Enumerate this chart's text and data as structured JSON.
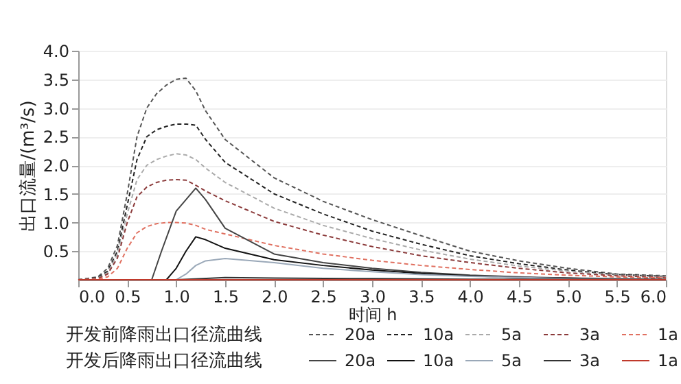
{
  "chart_data": {
    "type": "line",
    "xlabel": "时间 h",
    "ylabel": "出口流量/(m³/s)",
    "xlim": [
      0,
      6.0
    ],
    "ylim": [
      0,
      4.0
    ],
    "xticks": [
      {
        "value": 0,
        "label": "0.0"
      },
      0.5,
      {
        "value": 1,
        "label": "1.0"
      },
      1.5,
      {
        "value": 2,
        "label": "2.0"
      },
      2.5,
      {
        "value": 3,
        "label": "3.0"
      },
      3.5,
      {
        "value": 4,
        "label": "4.0"
      },
      4.5,
      {
        "value": 5,
        "label": "5.0"
      },
      5.5,
      {
        "value": 6,
        "label": "6.0"
      }
    ],
    "yticks": [
      0.5,
      {
        "value": 1,
        "label": "1.0"
      },
      1.5,
      {
        "value": 2,
        "label": "2.0"
      },
      2.5,
      {
        "value": 3,
        "label": "3.0"
      },
      3.5,
      {
        "value": 4,
        "label": "4.0"
      }
    ],
    "grid": "y",
    "legend": "bottom",
    "marker": "none",
    "annotations": [
      "开发前降雨出口径流曲线",
      "开发后降雨出口径流曲线"
    ],
    "series": [
      {
        "name": "20a",
        "color": "#555555",
        "line_style": "dashed",
        "x": [
          0,
          0.2,
          0.3,
          0.4,
          0.5,
          0.6,
          0.7,
          0.8,
          0.9,
          1.0,
          1.1,
          1.2,
          1.3,
          1.5,
          2.0,
          2.5,
          3.0,
          3.5,
          4.0,
          4.5,
          5.0,
          5.5,
          6.0
        ],
        "values": [
          0,
          0.05,
          0.2,
          0.6,
          1.5,
          2.5,
          3.0,
          3.25,
          3.4,
          3.5,
          3.52,
          3.3,
          2.95,
          2.45,
          1.78,
          1.37,
          1.05,
          0.77,
          0.5,
          0.33,
          0.2,
          0.1,
          0.07
        ]
      },
      {
        "name": "10a",
        "color": "#222222",
        "line_style": "dashed",
        "x": [
          0,
          0.2,
          0.3,
          0.4,
          0.5,
          0.6,
          0.7,
          0.8,
          0.9,
          1.0,
          1.1,
          1.2,
          1.3,
          1.5,
          2.0,
          2.5,
          3.0,
          3.5,
          4.0,
          4.5,
          5.0,
          5.5,
          6.0
        ],
        "values": [
          0,
          0.04,
          0.15,
          0.5,
          1.3,
          2.1,
          2.5,
          2.62,
          2.68,
          2.72,
          2.72,
          2.7,
          2.45,
          2.05,
          1.5,
          1.15,
          0.85,
          0.62,
          0.42,
          0.28,
          0.17,
          0.09,
          0.06
        ]
      },
      {
        "name": "5a",
        "color": "#aaaaaa",
        "line_style": "dashed",
        "x": [
          0,
          0.2,
          0.3,
          0.4,
          0.5,
          0.6,
          0.7,
          0.8,
          0.9,
          1.0,
          1.1,
          1.2,
          1.3,
          1.5,
          2.0,
          2.5,
          3.0,
          3.5,
          4.0,
          4.5,
          5.0,
          5.5,
          6.0
        ],
        "values": [
          0,
          0.03,
          0.12,
          0.45,
          1.15,
          1.75,
          2.0,
          2.1,
          2.16,
          2.2,
          2.18,
          2.1,
          1.95,
          1.7,
          1.25,
          0.95,
          0.72,
          0.52,
          0.36,
          0.24,
          0.15,
          0.08,
          0.05
        ]
      },
      {
        "name": "3a",
        "color": "#8b3a3a",
        "line_style": "dashed",
        "x": [
          0,
          0.2,
          0.3,
          0.4,
          0.5,
          0.6,
          0.7,
          0.8,
          0.9,
          1.0,
          1.1,
          1.2,
          1.3,
          1.5,
          2.0,
          2.5,
          3.0,
          3.5,
          4.0,
          4.5,
          5.0,
          5.5,
          6.0
        ],
        "values": [
          0,
          0.02,
          0.1,
          0.38,
          1.0,
          1.45,
          1.62,
          1.7,
          1.74,
          1.75,
          1.74,
          1.65,
          1.55,
          1.38,
          1.02,
          0.78,
          0.58,
          0.42,
          0.3,
          0.2,
          0.12,
          0.07,
          0.04
        ]
      },
      {
        "name": "1a",
        "color": "#e07060",
        "line_style": "dashed",
        "x": [
          0,
          0.2,
          0.3,
          0.4,
          0.5,
          0.6,
          0.7,
          0.8,
          0.9,
          1.0,
          1.1,
          1.2,
          1.3,
          1.5,
          2.0,
          2.5,
          3.0,
          3.5,
          4.0,
          4.5,
          5.0,
          5.5,
          6.0
        ],
        "values": [
          0,
          0.01,
          0.05,
          0.2,
          0.55,
          0.82,
          0.93,
          0.98,
          1.0,
          1.0,
          0.99,
          0.95,
          0.88,
          0.8,
          0.6,
          0.45,
          0.34,
          0.25,
          0.18,
          0.12,
          0.08,
          0.05,
          0.03
        ]
      },
      {
        "name": "20a",
        "color": "#444444",
        "line_style": "solid",
        "x": [
          0,
          0.75,
          0.85,
          1.0,
          1.1,
          1.2,
          1.3,
          1.5,
          2.0,
          2.5,
          3.0,
          3.5,
          4.0,
          4.5,
          5.0,
          5.5,
          6.0
        ],
        "values": [
          0,
          0,
          0.5,
          1.2,
          1.4,
          1.6,
          1.4,
          0.9,
          0.45,
          0.3,
          0.2,
          0.13,
          0.08,
          0.05,
          0.03,
          0.02,
          0.01
        ]
      },
      {
        "name": "10a",
        "color": "#111111",
        "line_style": "solid",
        "x": [
          0,
          0.9,
          1.0,
          1.1,
          1.2,
          1.3,
          1.5,
          2.0,
          2.5,
          3.0,
          3.5,
          4.0,
          4.5,
          5.0,
          5.5,
          6.0
        ],
        "values": [
          0,
          0,
          0.2,
          0.5,
          0.75,
          0.7,
          0.55,
          0.35,
          0.25,
          0.17,
          0.11,
          0.07,
          0.04,
          0.03,
          0.01,
          0
        ]
      },
      {
        "name": "5a",
        "color": "#9aa8b8",
        "line_style": "solid",
        "x": [
          0,
          1.0,
          1.1,
          1.2,
          1.3,
          1.5,
          2.0,
          2.5,
          3.0,
          3.5,
          4.0,
          4.5,
          5.0,
          5.5,
          6.0
        ],
        "values": [
          0,
          0,
          0.1,
          0.25,
          0.33,
          0.37,
          0.3,
          0.2,
          0.14,
          0.09,
          0.06,
          0.04,
          0.02,
          0.01,
          0
        ]
      },
      {
        "name": "3a",
        "color": "#333333",
        "line_style": "solid",
        "x": [
          0,
          1.0,
          1.5,
          2.0,
          3.0,
          4.0,
          5.0,
          6.0
        ],
        "values": [
          0,
          0,
          0.04,
          0.03,
          0.02,
          0.01,
          0.01,
          0
        ]
      },
      {
        "name": "1a",
        "color": "#c0392b",
        "line_style": "solid",
        "x": [
          0,
          6.0
        ],
        "values": [
          0,
          0
        ]
      }
    ]
  }
}
